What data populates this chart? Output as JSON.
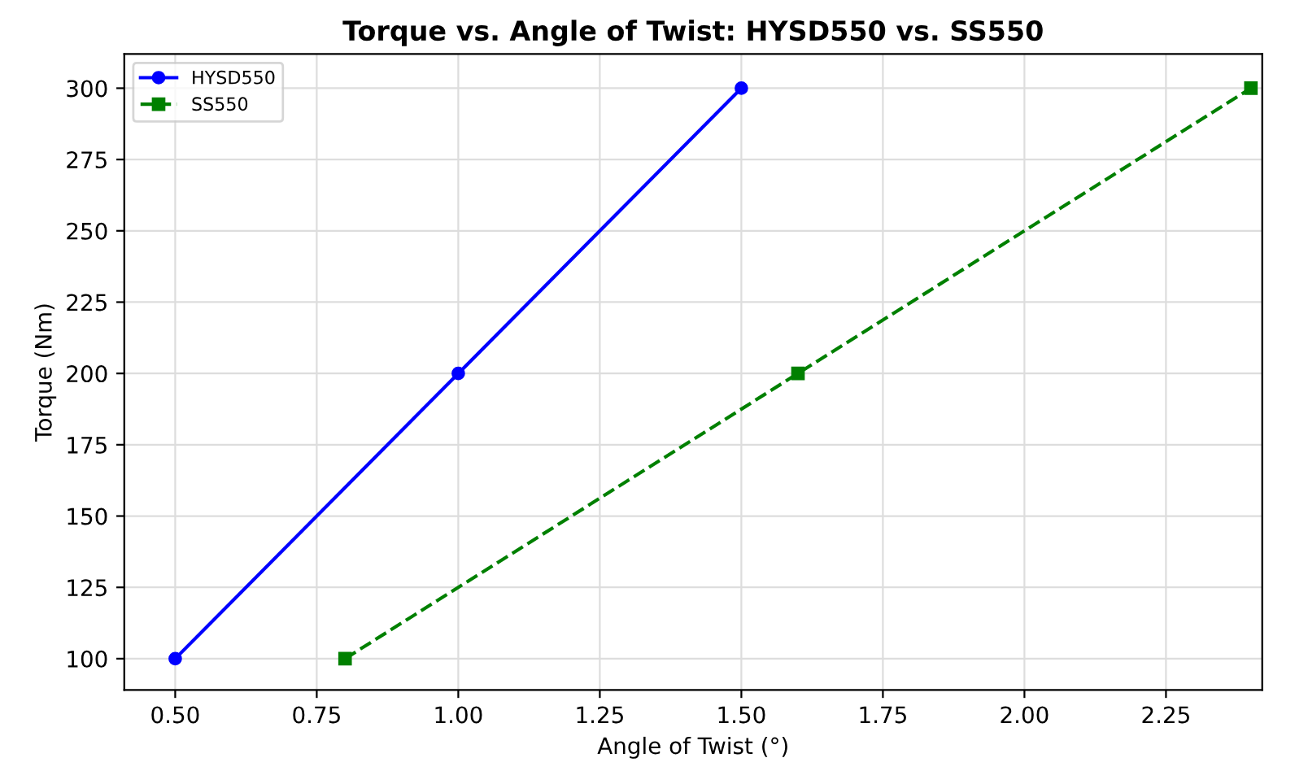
{
  "chart_data": {
    "type": "line",
    "title": "Torque vs. Angle of Twist: HYSD550 vs. SS550",
    "xlabel": "Angle of Twist (°)",
    "ylabel": "Torque (Nm)",
    "series": [
      {
        "name": "HYSD550",
        "color": "#0000ff",
        "x": [
          0.5,
          1.0,
          1.5
        ],
        "values": [
          100,
          200,
          300
        ],
        "marker": "circle",
        "line_style": "solid"
      },
      {
        "name": "SS550",
        "color": "#008000",
        "x": [
          0.8,
          1.6,
          2.4
        ],
        "values": [
          100,
          200,
          300
        ],
        "marker": "square",
        "line_style": "dashed"
      }
    ],
    "xlim": [
      0.41,
      2.42
    ],
    "xticks": [
      {
        "value": 0.5,
        "label": "0.50"
      },
      {
        "value": 0.75,
        "label": "0.75"
      },
      {
        "value": 1.0,
        "label": "1.00"
      },
      {
        "value": 1.25,
        "label": "1.25"
      },
      {
        "value": 1.5,
        "label": "1.50"
      },
      {
        "value": 1.75,
        "label": "1.75"
      },
      {
        "value": 2.0,
        "label": "2.00"
      },
      {
        "value": 2.25,
        "label": "2.25"
      }
    ],
    "ylim": [
      89,
      312
    ],
    "yticks": [
      100,
      125,
      150,
      175,
      200,
      225,
      250,
      275,
      300
    ],
    "grid": true,
    "legend": "top left"
  }
}
